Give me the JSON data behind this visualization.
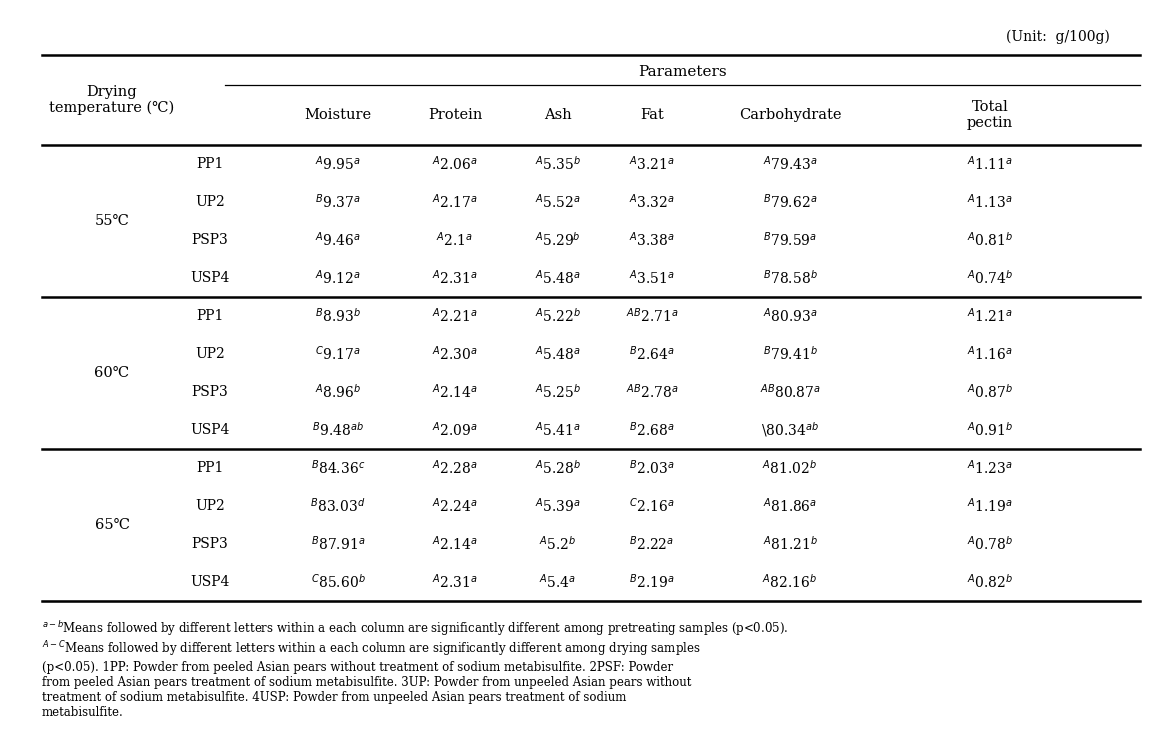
{
  "unit_label": "(Unit:  g/100g)",
  "col_headers": [
    "Moisture",
    "Protein",
    "Ash",
    "Fat",
    "Carbohydrate",
    "Total\npectin"
  ],
  "rows": [
    [
      "PP1",
      "$^{A}$9.95$^{a}$",
      "$^{A}$2.06$^{a}$",
      "$^{A}$5.35$^{b}$",
      "$^{A}$3.21$^{a}$",
      "$^{A}$79.43$^{a}$",
      "$^{A}$1.11$^{a}$"
    ],
    [
      "UP2",
      "$^{B}$9.37$^{a}$",
      "$^{A}$2.17$^{a}$",
      "$^{A}$5.52$^{a}$",
      "$^{A}$3.32$^{a}$",
      "$^{B}$79.62$^{a}$",
      "$^{A}$1.13$^{a}$"
    ],
    [
      "PSP3",
      "$^{A}$9.46$^{a}$",
      "$^{A}$2.1$^{a}$",
      "$^{A}$5.29$^{b}$",
      "$^{A}$3.38$^{a}$",
      "$^{B}$79.59$^{a}$",
      "$^{A}$0.81$^{b}$"
    ],
    [
      "USP4",
      "$^{A}$9.12$^{a}$",
      "$^{A}$2.31$^{a}$",
      "$^{A}$5.48$^{a}$",
      "$^{A}$3.51$^{a}$",
      "$^{B}$78.58$^{b}$",
      "$^{A}$0.74$^{b}$"
    ],
    [
      "PP1",
      "$^{B}$8.93$^{b}$",
      "$^{A}$2.21$^{a}$",
      "$^{A}$5.22$^{b}$",
      "$^{AB}$2.71$^{a}$",
      "$^{A}$80.93$^{a}$",
      "$^{A}$1.21$^{a}$"
    ],
    [
      "UP2",
      "$^{C}$9.17$^{a}$",
      "$^{A}$2.30$^{a}$",
      "$^{A}$5.48$^{a}$",
      "$^{B}$2.64$^{a}$",
      "$^{B}$79.41$^{b}$",
      "$^{A}$1.16$^{a}$"
    ],
    [
      "PSP3",
      "$^{A}$8.96$^{b}$",
      "$^{A}$2.14$^{a}$",
      "$^{A}$5.25$^{b}$",
      "$^{AB}$2.78$^{a}$",
      "$^{AB}$80.87$^{a}$",
      "$^{A}$0.87$^{b}$"
    ],
    [
      "USP4",
      "$^{B}$9.48$^{ab}$",
      "$^{A}$2.09$^{a}$",
      "$^{A}$5.41$^{a}$",
      "$^{B}$2.68$^{a}$",
      "\\80.34$^{ab}$",
      "$^{A}$0.91$^{b}$"
    ],
    [
      "PP1",
      "$^{B}$84.36$^{c}$",
      "$^{A}$2.28$^{a}$",
      "$^{A}$5.28$^{b}$",
      "$^{B}$2.03$^{a}$",
      "$^{A}$81.02$^{b}$",
      "$^{A}$1.23$^{a}$"
    ],
    [
      "UP2",
      "$^{B}$83.03$^{d}$",
      "$^{A}$2.24$^{a}$",
      "$^{A}$5.39$^{a}$",
      "$^{C}$2.16$^{a}$",
      "$^{A}$81.86$^{a}$",
      "$^{A}$1.19$^{a}$"
    ],
    [
      "PSP3",
      "$^{B}$87.91$^{a}$",
      "$^{A}$2.14$^{a}$",
      "$^{A}$5.2$^{b}$",
      "$^{B}$2.22$^{a}$",
      "$^{A}$81.21$^{b}$",
      "$^{A}$0.78$^{b}$"
    ],
    [
      "USP4",
      "$^{C}$85.60$^{b}$",
      "$^{A}$2.31$^{a}$",
      "$^{A}$5.4$^{a}$",
      "$^{B}$2.19$^{a}$",
      "$^{A}$82.16$^{b}$",
      "$^{A}$0.82$^{b}$"
    ]
  ],
  "group_temps": [
    "55℃",
    "60℃",
    "65℃"
  ],
  "footnote1": "a-bMeans followed by different letters within a each column are significantly different among pretreating samples (p<0.05).",
  "footnote2": "A-CMeans followed by different letters within a each column are significantly different among drying samples (p<0.05). 1PP: Powder from peeled Asian pears without treatment of sodium metabisulfite. 2PSF: Powder from peeled Asian pears treatment of sodium metabisulfite. 3UP: Powder from unpeeled Asian pears without treatment of sodium metabisulfite. 4USP: Powder from unpeeled Asian pears treatment of sodium metabisulfite.",
  "background_color": "#ffffff",
  "text_color": "#000000"
}
